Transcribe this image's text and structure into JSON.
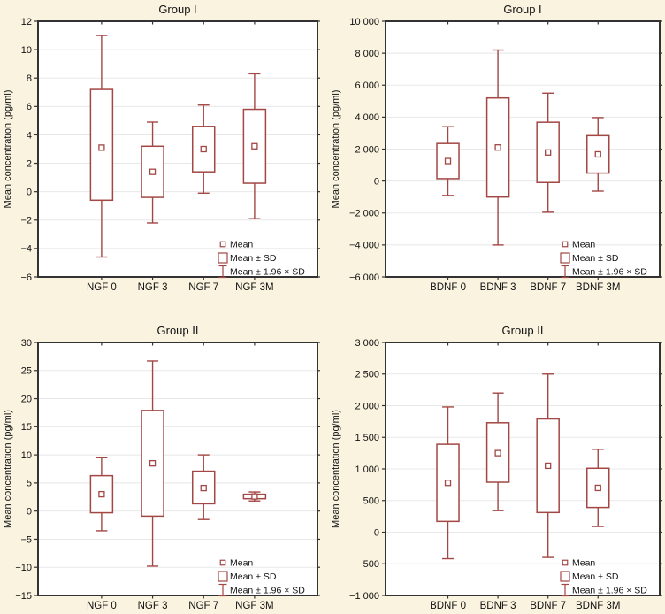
{
  "colors": {
    "background": "#FAF3E0",
    "plot_background": "#FFFFFF",
    "gridline": "#E8E8E8",
    "axis_frame": "#333333",
    "box_stroke": "#A24744",
    "text": "#111111"
  },
  "legend": {
    "position": "bottom-right",
    "items": [
      "Mean",
      "Mean ± SD",
      "Mean ± 1.96 × SD"
    ]
  },
  "chart_data": [
    {
      "type": "box",
      "title": "Group I",
      "ylabel": "Mean concentration (pg/ml)",
      "xlabel": "",
      "ylim": [
        -6,
        12
      ],
      "yticks": [
        12,
        10,
        8,
        6,
        4,
        2,
        0,
        -2,
        -4,
        -6
      ],
      "ytick_labels": [
        "12",
        "10",
        "8",
        "6",
        "4",
        "2",
        "0",
        "−2",
        "−4",
        "−6"
      ],
      "grid": "horizontal",
      "legend_position": "bottom-right",
      "categories": [
        "NGF 0",
        "NGF 3",
        "NGF 7",
        "NGF 3M"
      ],
      "boxes": [
        {
          "category": "NGF 0",
          "mean": 3.1,
          "mean_sd": [
            -0.6,
            7.2
          ],
          "mean_196sd": [
            -4.6,
            11.0
          ]
        },
        {
          "category": "NGF 3",
          "mean": 1.4,
          "mean_sd": [
            -0.4,
            3.2
          ],
          "mean_196sd": [
            -2.2,
            4.9
          ]
        },
        {
          "category": "NGF 7",
          "mean": 3.0,
          "mean_sd": [
            1.4,
            4.6
          ],
          "mean_196sd": [
            -0.1,
            6.1
          ]
        },
        {
          "category": "NGF 3M",
          "mean": 3.2,
          "mean_sd": [
            0.6,
            5.8
          ],
          "mean_196sd": [
            -1.9,
            8.3
          ]
        }
      ]
    },
    {
      "type": "box",
      "title": "Group I",
      "ylabel": "Mean concentration (pg/ml)",
      "xlabel": "",
      "ylim": [
        -6000,
        10000
      ],
      "yticks": [
        10000,
        8000,
        6000,
        4000,
        2000,
        0,
        -2000,
        -4000,
        -6000
      ],
      "ytick_labels": [
        "10 000",
        "8 000",
        "6 000",
        "4 000",
        "2 000",
        "0",
        "−2 000",
        "−4 000",
        "−6 000"
      ],
      "grid": "horizontal",
      "legend_position": "bottom-right",
      "categories": [
        "BDNF 0",
        "BDNF 3",
        "BDNF 7",
        "BDNF 3M"
      ],
      "boxes": [
        {
          "category": "BDNF 0",
          "mean": 1250,
          "mean_sd": [
            150,
            2350
          ],
          "mean_196sd": [
            -900,
            3400
          ]
        },
        {
          "category": "BDNF 3",
          "mean": 2100,
          "mean_sd": [
            -1000,
            5200
          ],
          "mean_196sd": [
            -4000,
            8200
          ]
        },
        {
          "category": "BDNF 7",
          "mean": 1790,
          "mean_sd": [
            -90,
            3680
          ],
          "mean_196sd": [
            -1950,
            5500
          ]
        },
        {
          "category": "BDNF 3M",
          "mean": 1670,
          "mean_sd": [
            500,
            2840
          ],
          "mean_196sd": [
            -630,
            3970
          ]
        }
      ]
    },
    {
      "type": "box",
      "title": "Group II",
      "ylabel": "Mean concentration (pg/ml)",
      "xlabel": "",
      "ylim": [
        -15,
        30
      ],
      "yticks": [
        30,
        25,
        20,
        15,
        10,
        5,
        0,
        -5,
        -10,
        -15
      ],
      "ytick_labels": [
        "30",
        "25",
        "20",
        "15",
        "10",
        "5",
        "0",
        "−5",
        "−10",
        "−15"
      ],
      "grid": "horizontal",
      "legend_position": "bottom-right",
      "categories": [
        "NGF 0",
        "NGF 3",
        "NGF 7",
        "NGF 3M"
      ],
      "boxes": [
        {
          "category": "NGF 0",
          "mean": 3.0,
          "mean_sd": [
            -0.3,
            6.3
          ],
          "mean_196sd": [
            -3.5,
            9.5
          ]
        },
        {
          "category": "NGF 3",
          "mean": 8.5,
          "mean_sd": [
            -0.9,
            17.9
          ],
          "mean_196sd": [
            -9.8,
            26.7
          ]
        },
        {
          "category": "NGF 7",
          "mean": 4.1,
          "mean_sd": [
            1.3,
            7.1
          ],
          "mean_196sd": [
            -1.5,
            10.0
          ]
        },
        {
          "category": "NGF 3M",
          "mean": 2.6,
          "mean_sd": [
            2.2,
            3.0
          ],
          "mean_196sd": [
            1.8,
            3.4
          ]
        }
      ]
    },
    {
      "type": "box",
      "title": "Group II",
      "ylabel": "Mean concentration (pg/ml)",
      "xlabel": "",
      "ylim": [
        -1000,
        3000
      ],
      "yticks": [
        3000,
        2500,
        2000,
        1500,
        1000,
        500,
        0,
        -500,
        -1000
      ],
      "ytick_labels": [
        "3 000",
        "2 500",
        "2 000",
        "1 500",
        "1 000",
        "500",
        "0",
        "−500",
        "−1 000"
      ],
      "grid": "horizontal",
      "legend_position": "bottom-right",
      "categories": [
        "BDNF 0",
        "BDNF 3",
        "BDNF 7",
        "BDNF 3M"
      ],
      "boxes": [
        {
          "category": "BDNF 0",
          "mean": 780,
          "mean_sd": [
            170,
            1390
          ],
          "mean_196sd": [
            -420,
            1980
          ]
        },
        {
          "category": "BDNF 3",
          "mean": 1250,
          "mean_sd": [
            790,
            1730
          ],
          "mean_196sd": [
            340,
            2200
          ]
        },
        {
          "category": "BDNF 7",
          "mean": 1050,
          "mean_sd": [
            310,
            1790
          ],
          "mean_196sd": [
            -400,
            2500
          ]
        },
        {
          "category": "BDNF 3M",
          "mean": 700,
          "mean_sd": [
            390,
            1010
          ],
          "mean_196sd": [
            90,
            1310
          ]
        }
      ]
    }
  ]
}
